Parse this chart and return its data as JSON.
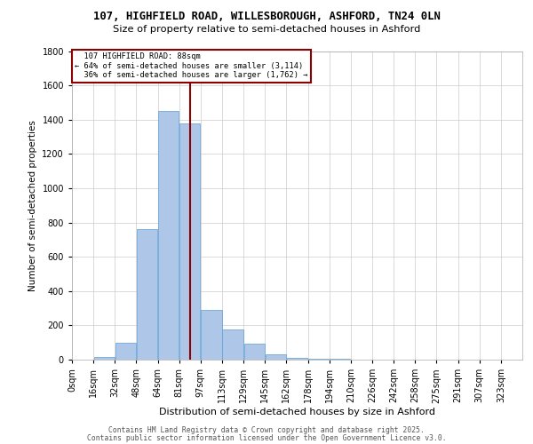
{
  "title_line1": "107, HIGHFIELD ROAD, WILLESBOROUGH, ASHFORD, TN24 0LN",
  "title_line2": "Size of property relative to semi-detached houses in Ashford",
  "xlabel": "Distribution of semi-detached houses by size in Ashford",
  "ylabel": "Number of semi-detached properties",
  "property_size": 88,
  "property_label": "107 HIGHFIELD ROAD: 88sqm",
  "pct_smaller": 64,
  "pct_larger": 36,
  "count_smaller": "3,114",
  "count_larger": "1,762",
  "bar_color": "#aec6e8",
  "bar_edge_color": "#5a9fd4",
  "line_color": "#8b0000",
  "annotation_box_color": "#8b0000",
  "background_color": "#ffffff",
  "grid_color": "#cccccc",
  "bin_starts": [
    0,
    16,
    32,
    48,
    64,
    80,
    96,
    112,
    128,
    144,
    160,
    176,
    192,
    208,
    224,
    240,
    256,
    272,
    288,
    304,
    320
  ],
  "bin_labels": [
    "0sqm",
    "16sqm",
    "32sqm",
    "48sqm",
    "64sqm",
    "81sqm",
    "97sqm",
    "113sqm",
    "129sqm",
    "145sqm",
    "162sqm",
    "178sqm",
    "194sqm",
    "210sqm",
    "226sqm",
    "242sqm",
    "258sqm",
    "275sqm",
    "291sqm",
    "307sqm",
    "323sqm"
  ],
  "counts": [
    0,
    15,
    100,
    760,
    1450,
    1380,
    290,
    175,
    95,
    30,
    10,
    5,
    3,
    2,
    1,
    0,
    0,
    0,
    0,
    0,
    0
  ],
  "ylim": [
    0,
    1800
  ],
  "yticks": [
    0,
    200,
    400,
    600,
    800,
    1000,
    1200,
    1400,
    1600,
    1800
  ],
  "xlim": [
    0,
    336
  ],
  "bin_width": 16,
  "footer_line1": "Contains HM Land Registry data © Crown copyright and database right 2025.",
  "footer_line2": "Contains public sector information licensed under the Open Government Licence v3.0."
}
